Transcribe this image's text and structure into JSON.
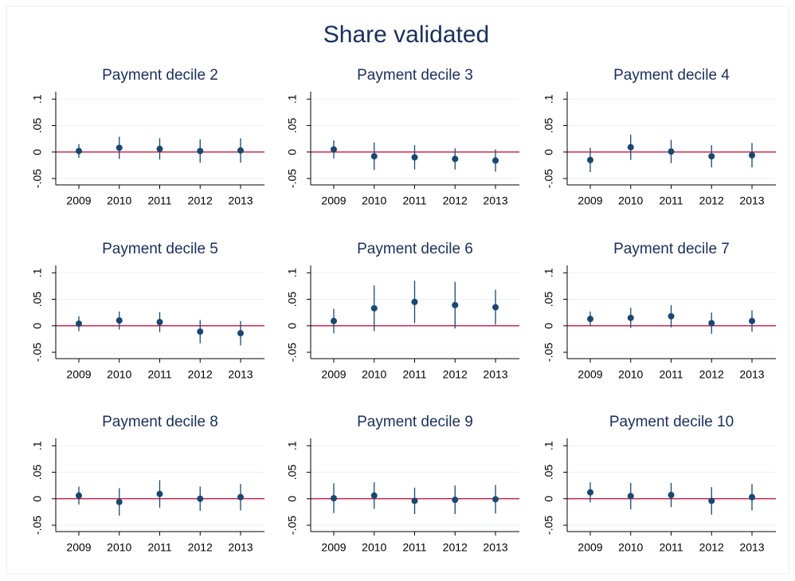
{
  "title": "Share validated",
  "chart_data": [
    {
      "type": "errorbar",
      "title": "Payment decile 2",
      "categories": [
        "2009",
        "2010",
        "2011",
        "2012",
        "2013"
      ],
      "values": [
        0.002,
        0.008,
        0.006,
        0.002,
        0.003
      ],
      "errors": [
        0.013,
        0.021,
        0.02,
        0.022,
        0.023
      ],
      "color": "#1a476f",
      "ylim": [
        -0.062,
        0.114
      ],
      "yticks": [
        {
          "value": -0.05,
          "label": "-.05"
        },
        0,
        {
          "value": 0.05,
          "label": ".05"
        },
        {
          "value": 0.1,
          "label": ".1"
        }
      ],
      "grid": true,
      "hline": {
        "value": 0,
        "color": "#c10534"
      }
    },
    {
      "type": "errorbar",
      "title": "Payment decile 3",
      "categories": [
        "2009",
        "2010",
        "2011",
        "2012",
        "2013"
      ],
      "values": [
        0.005,
        -0.008,
        -0.01,
        -0.013,
        -0.016
      ],
      "errors": [
        0.017,
        0.026,
        0.023,
        0.02,
        0.021
      ],
      "color": "#1a476f",
      "ylim": [
        -0.062,
        0.114
      ],
      "yticks": [
        {
          "value": -0.05,
          "label": "-.05"
        },
        0,
        {
          "value": 0.05,
          "label": ".05"
        },
        {
          "value": 0.1,
          "label": ".1"
        }
      ],
      "grid": true,
      "hline": {
        "value": 0,
        "color": "#c10534"
      }
    },
    {
      "type": "errorbar",
      "title": "Payment decile 4",
      "categories": [
        "2009",
        "2010",
        "2011",
        "2012",
        "2013"
      ],
      "values": [
        -0.015,
        0.009,
        0.001,
        -0.008,
        -0.006
      ],
      "errors": [
        0.023,
        0.024,
        0.022,
        0.021,
        0.023
      ],
      "color": "#1a476f",
      "ylim": [
        -0.062,
        0.114
      ],
      "yticks": [
        {
          "value": -0.05,
          "label": "-.05"
        },
        0,
        {
          "value": 0.05,
          "label": ".05"
        },
        {
          "value": 0.1,
          "label": ".1"
        }
      ],
      "grid": true,
      "hline": {
        "value": 0,
        "color": "#c10534"
      }
    },
    {
      "type": "errorbar",
      "title": "Payment decile 5",
      "categories": [
        "2009",
        "2010",
        "2011",
        "2012",
        "2013"
      ],
      "values": [
        0.004,
        0.01,
        0.007,
        -0.011,
        -0.014
      ],
      "errors": [
        0.014,
        0.017,
        0.019,
        0.022,
        0.023
      ],
      "color": "#1a476f",
      "ylim": [
        -0.062,
        0.114
      ],
      "yticks": [
        {
          "value": -0.05,
          "label": "-.05"
        },
        0,
        {
          "value": 0.05,
          "label": ".05"
        },
        {
          "value": 0.1,
          "label": ".1"
        }
      ],
      "grid": true,
      "hline": {
        "value": 0,
        "color": "#c10534"
      }
    },
    {
      "type": "errorbar",
      "title": "Payment decile 6",
      "categories": [
        "2009",
        "2010",
        "2011",
        "2012",
        "2013"
      ],
      "values": [
        0.009,
        0.033,
        0.045,
        0.039,
        0.035
      ],
      "errors": [
        0.023,
        0.043,
        0.04,
        0.044,
        0.033
      ],
      "color": "#1a476f",
      "ylim": [
        -0.062,
        0.114
      ],
      "yticks": [
        {
          "value": -0.05,
          "label": "-.05"
        },
        0,
        {
          "value": 0.05,
          "label": ".05"
        },
        {
          "value": 0.1,
          "label": ".1"
        }
      ],
      "grid": true,
      "hline": {
        "value": 0,
        "color": "#c10534"
      }
    },
    {
      "type": "errorbar",
      "title": "Payment decile 7",
      "categories": [
        "2009",
        "2010",
        "2011",
        "2012",
        "2013"
      ],
      "values": [
        0.013,
        0.015,
        0.018,
        0.005,
        0.009
      ],
      "errors": [
        0.014,
        0.019,
        0.021,
        0.02,
        0.02
      ],
      "color": "#1a476f",
      "ylim": [
        -0.062,
        0.114
      ],
      "yticks": [
        {
          "value": -0.05,
          "label": "-.05"
        },
        0,
        {
          "value": 0.05,
          "label": ".05"
        },
        {
          "value": 0.1,
          "label": ".1"
        }
      ],
      "grid": true,
      "hline": {
        "value": 0,
        "color": "#c10534"
      }
    },
    {
      "type": "errorbar",
      "title": "Payment decile 8",
      "categories": [
        "2009",
        "2010",
        "2011",
        "2012",
        "2013"
      ],
      "values": [
        0.006,
        -0.006,
        0.009,
        0,
        0.003
      ],
      "errors": [
        0.017,
        0.026,
        0.026,
        0.023,
        0.025
      ],
      "color": "#1a476f",
      "ylim": [
        -0.062,
        0.114
      ],
      "yticks": [
        {
          "value": -0.05,
          "label": "-.05"
        },
        0,
        {
          "value": 0.05,
          "label": ".05"
        },
        {
          "value": 0.1,
          "label": ".1"
        }
      ],
      "grid": true,
      "hline": {
        "value": 0,
        "color": "#c10534"
      }
    },
    {
      "type": "errorbar",
      "title": "Payment decile 9",
      "categories": [
        "2009",
        "2010",
        "2011",
        "2012",
        "2013"
      ],
      "values": [
        0.001,
        0.006,
        -0.004,
        -0.002,
        -0.001
      ],
      "errors": [
        0.028,
        0.025,
        0.025,
        0.027,
        0.027
      ],
      "color": "#1a476f",
      "ylim": [
        -0.062,
        0.114
      ],
      "yticks": [
        {
          "value": -0.05,
          "label": "-.05"
        },
        0,
        {
          "value": 0.05,
          "label": ".05"
        },
        {
          "value": 0.1,
          "label": ".1"
        }
      ],
      "grid": true,
      "hline": {
        "value": 0,
        "color": "#c10534"
      }
    },
    {
      "type": "errorbar",
      "title": "Payment decile 10",
      "categories": [
        "2009",
        "2010",
        "2011",
        "2012",
        "2013"
      ],
      "values": [
        0.012,
        0.005,
        0.007,
        -0.004,
        0.003
      ],
      "errors": [
        0.019,
        0.025,
        0.023,
        0.026,
        0.025
      ],
      "color": "#1a476f",
      "ylim": [
        -0.062,
        0.114
      ],
      "yticks": [
        {
          "value": -0.05,
          "label": "-.05"
        },
        0,
        {
          "value": 0.05,
          "label": ".05"
        },
        {
          "value": 0.1,
          "label": ".1"
        }
      ],
      "grid": true,
      "hline": {
        "value": 0,
        "color": "#c10534"
      }
    }
  ]
}
